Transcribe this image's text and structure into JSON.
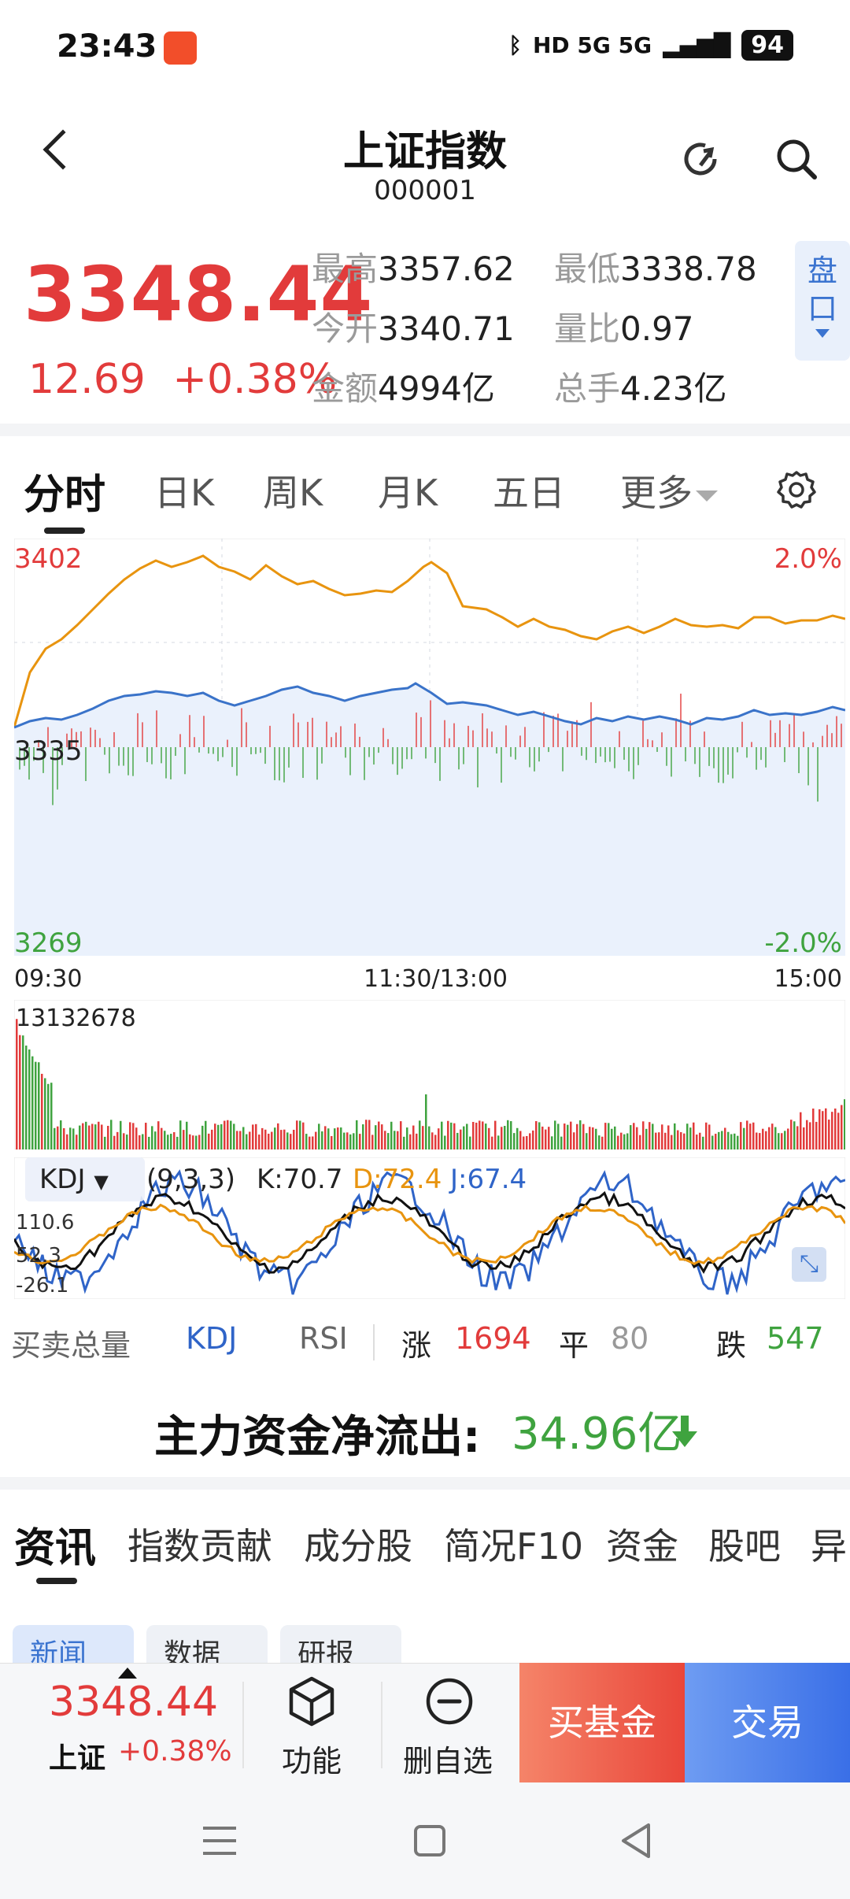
{
  "status_bar": {
    "time": "23:43",
    "indicators": "HD 5G 5G",
    "battery": "94",
    "icons": [
      "app-notification-icon",
      "bluetooth-icon",
      "wifi-icon",
      "signal-icon",
      "battery-icon"
    ]
  },
  "header": {
    "title": "上证指数",
    "code": "000001",
    "icons": [
      "back-icon",
      "refresh-icon",
      "search-icon"
    ]
  },
  "quote": {
    "price": "3348.44",
    "change": "12.69",
    "change_pct": "+0.38%",
    "stats": [
      {
        "label": "最高",
        "value": "3357.62"
      },
      {
        "label": "最低",
        "value": "3338.78"
      },
      {
        "label": "今开",
        "value": "3340.71"
      },
      {
        "label": "量比",
        "value": "0.97"
      },
      {
        "label": "金额",
        "value": "4994亿"
      },
      {
        "label": "总手",
        "value": "4.23亿"
      }
    ],
    "pan_button": "盘口"
  },
  "chart_tabs": [
    "分时",
    "日K",
    "周K",
    "月K",
    "五日",
    "更多"
  ],
  "chart": {
    "y_high": "3402",
    "y_mid": "3335",
    "y_low": "3269",
    "pct_high": "2.0%",
    "pct_low": "-2.0%",
    "time_start": "09:30",
    "time_mid": "11:30/13:00",
    "time_end": "15:00",
    "volume_label": "13132678",
    "colors": {
      "price_line": "#e8940f",
      "avg_line": "#3a73c9",
      "up": "#e23b3b",
      "down": "#3fa33f"
    }
  },
  "kdj": {
    "name": "KDJ",
    "params": "(9,3,3)",
    "k": "K:70.7",
    "d": "D:72.4",
    "j": "J:67.4",
    "axis": [
      "110.6",
      "52.3",
      "-26.1"
    ]
  },
  "indicator_row": {
    "items": [
      "买卖总量",
      "KDJ",
      "RSI"
    ],
    "up_label": "涨",
    "up_count": "1694",
    "flat_label": "平",
    "flat_count": "80",
    "down_label": "跌",
    "down_count": "547"
  },
  "fund_flow": {
    "label": "主力资金净流出:",
    "value": "34.96亿"
  },
  "info_tabs": [
    "资讯",
    "指数贡献",
    "成分股",
    "简况F10",
    "资金",
    "股吧",
    "异"
  ],
  "chips": [
    "新闻",
    "数据",
    "研报"
  ],
  "bottom_bar": {
    "price": "3348.44",
    "name": "上证",
    "pct": "+0.38%",
    "function": "功能",
    "remove_watch": "删自选",
    "buy_fund": "买基金",
    "trade": "交易"
  }
}
